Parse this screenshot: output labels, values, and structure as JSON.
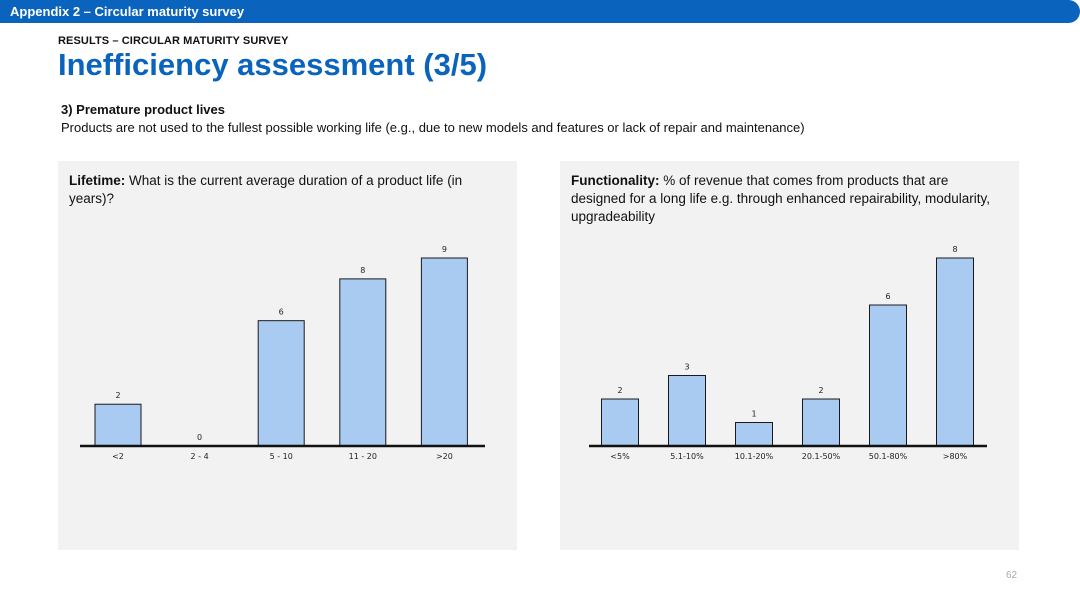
{
  "header": {
    "title": "Appendix 2 – Circular maturity survey"
  },
  "section_label": "RESULTS – CIRCULAR MATURITY SURVEY",
  "page_title": "Inefficiency assessment (3/5)",
  "sub_heading": "3) Premature product lives",
  "sub_text": "Products are not used to the fullest possible working life (e.g., due to new models and features or lack of repair and maintenance)",
  "page_number": "62",
  "colors": {
    "accent": "#0a63bd",
    "bar_fill": "#a9cbf1",
    "bar_stroke": "#1a1a1a",
    "panel": "#f2f2f2"
  },
  "chart_data": [
    {
      "type": "bar",
      "title_bold": "Lifetime:",
      "title_rest": " What is the current average duration of a product life (in years)?",
      "categories": [
        "<2",
        "2 - 4",
        "5 - 10",
        "11 - 20",
        ">20"
      ],
      "values": [
        2,
        0,
        6,
        8,
        9
      ],
      "ylim": [
        0,
        9
      ],
      "grid": false,
      "legend": "none"
    },
    {
      "type": "bar",
      "title_bold": "Functionality:",
      "title_rest": " % of revenue that comes from products that are designed for a long life e.g. through enhanced repairability, modularity, upgradeability",
      "categories": [
        "<5%",
        "5.1-10%",
        "10.1-20%",
        "20.1-50%",
        "50.1-80%",
        ">80%"
      ],
      "values": [
        2,
        3,
        1,
        2,
        6,
        8
      ],
      "ylim": [
        0,
        8
      ],
      "grid": false,
      "legend": "none"
    }
  ]
}
